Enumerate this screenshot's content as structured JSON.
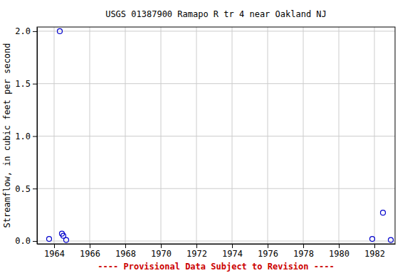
{
  "chart_data": {
    "type": "scatter",
    "title": "USGS 01387900 Ramapo R tr 4 near Oakland NJ",
    "y_label": "Streamflow, in cubic feet per second",
    "footer": "---- Provisional Data Subject to Revision ----",
    "x": [
      1963.72,
      1964.32,
      1964.44,
      1964.52,
      1964.68,
      1981.88,
      1982.48,
      1982.92
    ],
    "values": [
      0.02,
      2.0,
      0.07,
      0.05,
      0.01,
      0.02,
      0.27,
      0.01
    ],
    "color": "#0000cc",
    "marker": "open-circle",
    "xlim": [
      1963.04,
      1983.16
    ],
    "xticks": [
      1964,
      1966,
      1968,
      1970,
      1972,
      1974,
      1976,
      1978,
      1980,
      1982
    ],
    "ylim": [
      -0.027,
      2.04
    ],
    "yticks": [
      {
        "value": 0,
        "label": "0.0"
      },
      {
        "value": 0.5,
        "label": "0.5"
      },
      {
        "value": 1,
        "label": "1.0"
      },
      {
        "value": 1.5,
        "label": "1.5"
      },
      {
        "value": 2,
        "label": "2.0"
      }
    ],
    "grid": true
  }
}
